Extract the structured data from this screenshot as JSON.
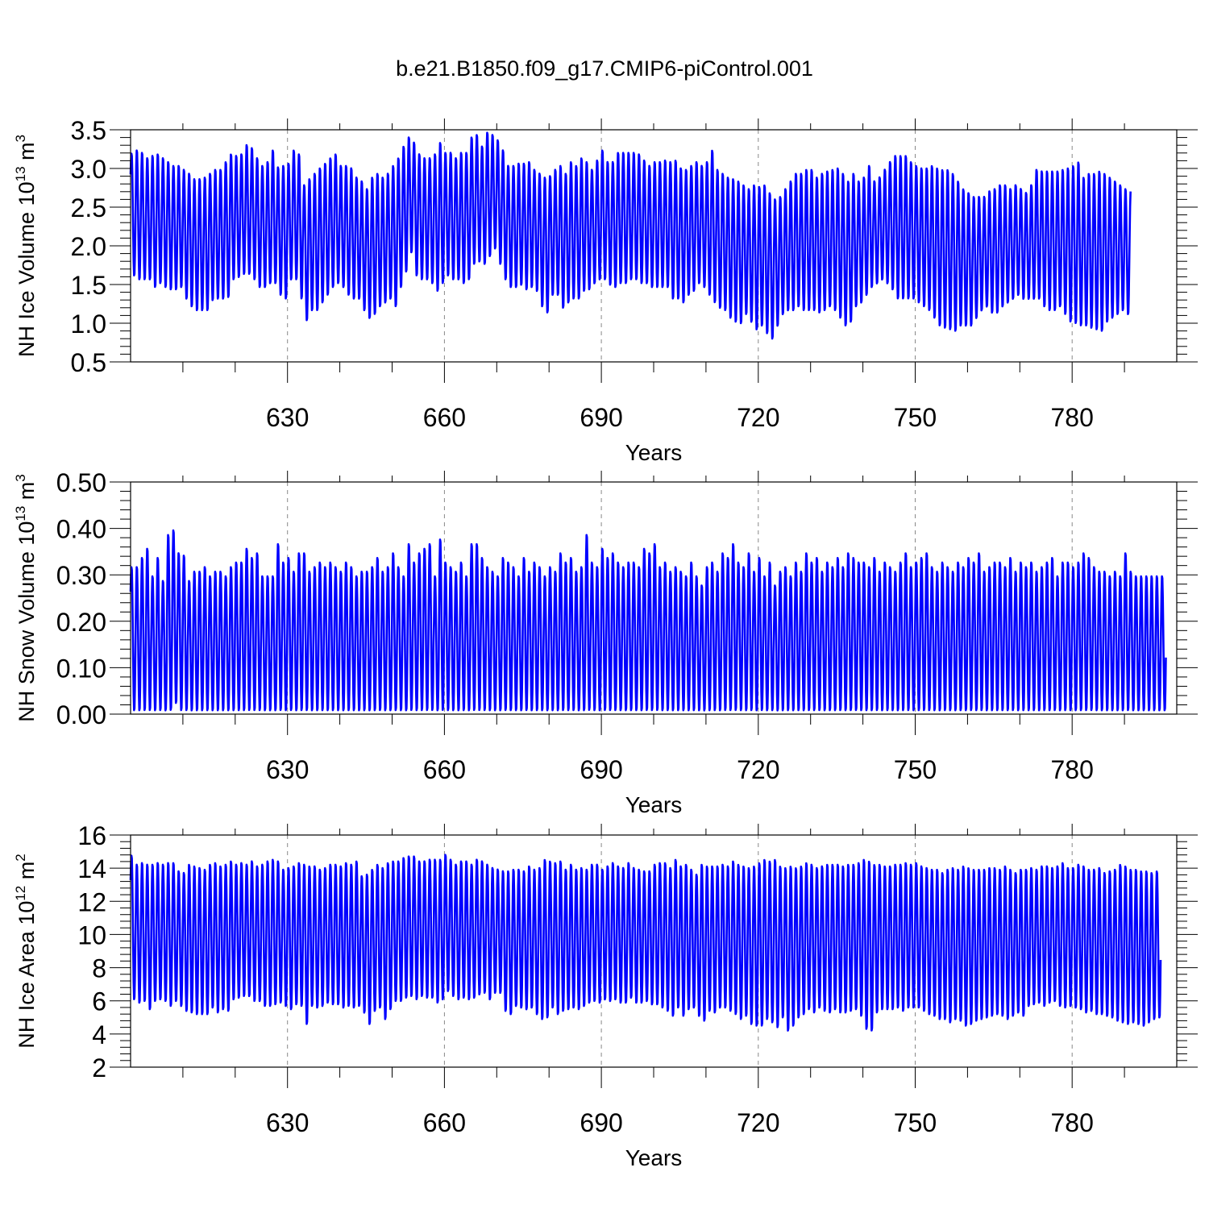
{
  "title": "b.e21.B1850.f09_g17.CMIP6-piControl.001",
  "colors": {
    "series": "#0000ff",
    "grid": "#888888",
    "axis": "#000000"
  },
  "chart_data": [
    {
      "type": "line",
      "xlabel": "Years",
      "ylabel_main": "NH Ice Volume 10",
      "ylabel_exp": "13",
      "ylabel_unit": " m",
      "ylabel_unit_exp": "3",
      "xlim": [
        600,
        800
      ],
      "ylim": [
        0.5,
        3.5
      ],
      "yticks": [
        "0.5",
        "1.0",
        "1.5",
        "2.0",
        "2.5",
        "3.0",
        "3.5"
      ],
      "xticks": [
        "630",
        "660",
        "690",
        "720",
        "750",
        "780"
      ],
      "start_year": 600,
      "end_year": 800,
      "series_name": "",
      "annual_max": [
        3.2,
        3.25,
        3.22,
        3.15,
        3.18,
        3.2,
        3.15,
        3.1,
        3.05,
        3.05,
        3.0,
        2.95,
        2.88,
        2.88,
        2.9,
        2.95,
        3.0,
        3.0,
        3.1,
        3.2,
        3.18,
        3.2,
        3.32,
        3.28,
        3.15,
        3.05,
        3.1,
        3.25,
        3.03,
        3.05,
        3.08,
        3.25,
        3.2,
        2.8,
        2.88,
        2.95,
        3.02,
        3.08,
        3.15,
        3.2,
        3.05,
        3.05,
        3.02,
        2.9,
        2.85,
        2.75,
        2.9,
        2.95,
        2.9,
        2.95,
        3.05,
        3.15,
        3.3,
        3.42,
        3.35,
        3.2,
        3.15,
        3.15,
        3.2,
        3.35,
        3.22,
        3.22,
        3.15,
        3.22,
        3.22,
        3.42,
        3.45,
        3.3,
        3.48,
        3.45,
        3.38,
        3.25,
        3.05,
        3.05,
        3.08,
        3.08,
        3.1,
        3.0,
        2.95,
        2.9,
        2.92,
        3.0,
        3.05,
        2.95,
        3.1,
        3.05,
        3.15,
        3.1,
        3.0,
        3.12,
        3.25,
        3.1,
        3.1,
        3.22,
        3.22,
        3.22,
        3.22,
        3.2,
        3.12,
        3.05,
        3.1,
        3.1,
        3.12,
        3.1,
        3.12,
        3.02,
        3.0,
        3.05,
        3.1,
        3.05,
        3.1,
        3.25,
        3.0,
        2.95,
        2.9,
        2.88,
        2.85,
        2.8,
        2.75,
        2.8,
        2.78,
        2.8,
        2.7,
        2.62,
        2.65,
        2.75,
        2.85,
        2.95,
        2.95,
        3.0,
        3.0,
        2.9,
        2.95,
        2.98,
        3.0,
        3.02,
        2.95,
        2.85,
        2.95,
        2.85,
        2.9,
        3.05,
        2.85,
        2.9,
        3.0,
        3.1,
        3.18,
        3.18,
        3.18,
        3.1,
        3.05,
        3.02,
        3.02,
        3.05,
        3.02,
        3.0,
        3.0,
        2.95,
        2.85,
        2.75,
        2.7,
        2.65,
        2.65,
        2.65,
        2.72,
        2.75,
        2.8,
        2.8,
        2.75,
        2.8,
        2.75,
        2.7,
        2.8,
        3.0,
        2.98,
        2.98,
        2.98,
        2.98,
        3.0,
        3.02,
        3.05,
        3.1,
        2.9,
        2.95,
        2.95,
        2.98,
        2.95,
        2.9,
        2.85,
        2.8,
        2.75,
        2.72,
        2.72,
        2.7,
        2.65,
        2.75,
        2.72
      ],
      "annual_min": [
        1.6,
        1.55,
        1.55,
        1.55,
        1.45,
        1.5,
        1.45,
        1.42,
        1.42,
        1.45,
        1.3,
        1.2,
        1.15,
        1.15,
        1.15,
        1.28,
        1.3,
        1.3,
        1.32,
        1.55,
        1.58,
        1.62,
        1.62,
        1.55,
        1.45,
        1.45,
        1.5,
        1.5,
        1.35,
        1.3,
        1.55,
        1.55,
        1.3,
        1.02,
        1.15,
        1.15,
        1.25,
        1.35,
        1.45,
        1.5,
        1.45,
        1.35,
        1.3,
        1.3,
        1.15,
        1.05,
        1.1,
        1.2,
        1.25,
        1.3,
        1.2,
        1.45,
        1.65,
        1.9,
        1.6,
        1.55,
        1.55,
        1.5,
        1.4,
        1.5,
        1.6,
        1.55,
        1.55,
        1.5,
        1.55,
        1.75,
        1.78,
        1.75,
        1.85,
        1.95,
        1.75,
        1.55,
        1.45,
        1.45,
        1.48,
        1.42,
        1.45,
        1.4,
        1.2,
        1.12,
        1.35,
        1.35,
        1.18,
        1.25,
        1.3,
        1.3,
        1.4,
        1.42,
        1.5,
        1.55,
        1.55,
        1.48,
        1.45,
        1.5,
        1.5,
        1.55,
        1.55,
        1.5,
        1.5,
        1.45,
        1.45,
        1.45,
        1.45,
        1.3,
        1.3,
        1.25,
        1.35,
        1.4,
        1.5,
        1.45,
        1.35,
        1.25,
        1.18,
        1.15,
        1.05,
        1.0,
        0.98,
        1.1,
        1.0,
        0.9,
        0.95,
        0.85,
        0.78,
        0.95,
        1.1,
        1.15,
        1.15,
        1.2,
        1.15,
        1.15,
        1.15,
        1.12,
        1.15,
        1.2,
        1.15,
        1.05,
        0.95,
        1.0,
        1.2,
        1.25,
        1.35,
        1.45,
        1.5,
        1.55,
        1.5,
        1.42,
        1.3,
        1.3,
        1.3,
        1.3,
        1.25,
        1.2,
        1.15,
        1.05,
        0.95,
        0.92,
        0.9,
        0.88,
        0.95,
        0.95,
        0.95,
        1.05,
        1.15,
        1.2,
        1.12,
        1.12,
        1.2,
        1.25,
        1.3,
        1.35,
        1.3,
        1.3,
        1.3,
        1.3,
        1.2,
        1.15,
        1.15,
        1.2,
        1.1,
        1.0,
        0.98,
        0.95,
        0.95,
        0.92,
        0.9,
        0.88,
        1.0,
        1.05,
        1.1,
        1.15,
        1.1
      ]
    },
    {
      "type": "line",
      "xlabel": "Years",
      "ylabel_main": "NH Snow Volume 10",
      "ylabel_exp": "13",
      "ylabel_unit": " m",
      "ylabel_unit_exp": "3",
      "xlim": [
        600,
        800
      ],
      "ylim": [
        0.0,
        0.5
      ],
      "yticks": [
        "0.00",
        "0.10",
        "0.20",
        "0.30",
        "0.40",
        "0.50"
      ],
      "xticks": [
        "630",
        "660",
        "690",
        "720",
        "750",
        "780"
      ],
      "start_year": 600,
      "end_year": 800,
      "series_name": "",
      "annual_max": [
        0.318,
        0.32,
        0.34,
        0.36,
        0.3,
        0.34,
        0.29,
        0.39,
        0.4,
        0.35,
        0.345,
        0.29,
        0.31,
        0.31,
        0.32,
        0.3,
        0.31,
        0.31,
        0.3,
        0.32,
        0.33,
        0.33,
        0.36,
        0.34,
        0.35,
        0.3,
        0.3,
        0.3,
        0.37,
        0.33,
        0.34,
        0.31,
        0.35,
        0.35,
        0.31,
        0.32,
        0.33,
        0.32,
        0.33,
        0.32,
        0.31,
        0.33,
        0.32,
        0.3,
        0.31,
        0.31,
        0.32,
        0.34,
        0.31,
        0.32,
        0.35,
        0.32,
        0.3,
        0.37,
        0.33,
        0.35,
        0.36,
        0.37,
        0.3,
        0.38,
        0.33,
        0.32,
        0.31,
        0.33,
        0.3,
        0.37,
        0.37,
        0.34,
        0.32,
        0.31,
        0.3,
        0.34,
        0.33,
        0.32,
        0.3,
        0.34,
        0.31,
        0.33,
        0.32,
        0.3,
        0.32,
        0.31,
        0.35,
        0.33,
        0.34,
        0.31,
        0.32,
        0.39,
        0.33,
        0.32,
        0.36,
        0.34,
        0.35,
        0.33,
        0.32,
        0.33,
        0.33,
        0.32,
        0.36,
        0.35,
        0.37,
        0.32,
        0.33,
        0.31,
        0.32,
        0.31,
        0.3,
        0.33,
        0.3,
        0.28,
        0.32,
        0.33,
        0.31,
        0.35,
        0.34,
        0.37,
        0.33,
        0.32,
        0.35,
        0.31,
        0.34,
        0.3,
        0.33,
        0.28,
        0.31,
        0.32,
        0.3,
        0.33,
        0.31,
        0.35,
        0.33,
        0.34,
        0.31,
        0.33,
        0.32,
        0.34,
        0.32,
        0.35,
        0.34,
        0.33,
        0.33,
        0.32,
        0.34,
        0.31,
        0.33,
        0.32,
        0.31,
        0.33,
        0.35,
        0.32,
        0.33,
        0.34,
        0.35,
        0.32,
        0.31,
        0.33,
        0.32,
        0.31,
        0.33,
        0.32,
        0.34,
        0.33,
        0.35,
        0.31,
        0.32,
        0.33,
        0.33,
        0.32,
        0.34,
        0.31,
        0.33,
        0.32,
        0.33,
        0.31,
        0.32,
        0.33,
        0.34,
        0.3,
        0.33,
        0.33,
        0.32,
        0.33,
        0.35,
        0.34,
        0.32,
        0.31,
        0.31,
        0.3,
        0.31,
        0.3,
        0.35,
        0.31,
        0.3,
        0.3,
        0.3,
        0.3,
        0.3,
        0.3
      ],
      "annual_min": [
        0.005,
        0.005,
        0.005,
        0.005,
        0.005,
        0.005,
        0.005,
        0.005,
        0.02,
        0.005,
        0.005,
        0.005,
        0.005,
        0.005,
        0.005,
        0.005,
        0.005,
        0.005,
        0.005,
        0.005,
        0.005,
        0.005,
        0.005,
        0.005,
        0.005,
        0.005,
        0.005,
        0.005,
        0.005,
        0.005,
        0.005,
        0.005,
        0.005,
        0.005,
        0.005,
        0.005,
        0.005,
        0.005,
        0.005,
        0.005,
        0.005,
        0.005,
        0.005,
        0.005,
        0.005,
        0.005,
        0.005,
        0.005,
        0.005,
        0.005,
        0.005,
        0.005,
        0.005,
        0.005,
        0.005,
        0.005,
        0.005,
        0.005,
        0.005,
        0.005,
        0.005,
        0.005,
        0.005,
        0.005,
        0.005,
        0.005,
        0.005,
        0.005,
        0.005,
        0.005,
        0.005,
        0.005,
        0.005,
        0.005,
        0.005,
        0.005,
        0.005,
        0.005,
        0.005,
        0.005,
        0.005,
        0.005,
        0.005,
        0.005,
        0.005,
        0.005,
        0.005,
        0.005,
        0.005,
        0.005,
        0.005,
        0.005,
        0.005,
        0.005,
        0.005,
        0.005,
        0.005,
        0.005,
        0.005,
        0.005,
        0.005,
        0.005,
        0.005,
        0.005,
        0.005,
        0.005,
        0.005,
        0.005,
        0.005,
        0.005,
        0.005,
        0.005,
        0.005,
        0.005,
        0.005,
        0.005,
        0.005,
        0.005,
        0.005,
        0.005,
        0.005,
        0.005,
        0.005,
        0.005,
        0.005,
        0.005,
        0.005,
        0.005,
        0.005,
        0.005,
        0.005,
        0.005,
        0.005,
        0.005,
        0.005,
        0.005,
        0.005,
        0.005,
        0.005,
        0.005,
        0.005,
        0.005,
        0.005,
        0.005,
        0.005,
        0.005,
        0.005,
        0.005,
        0.005,
        0.005,
        0.005,
        0.005,
        0.005,
        0.005,
        0.005,
        0.005,
        0.005,
        0.005,
        0.005,
        0.005,
        0.005,
        0.005,
        0.005,
        0.005,
        0.005,
        0.005,
        0.005,
        0.005,
        0.005,
        0.005,
        0.005,
        0.005,
        0.005,
        0.005,
        0.005,
        0.005,
        0.005,
        0.005,
        0.005,
        0.005,
        0.005,
        0.005,
        0.005,
        0.005,
        0.005,
        0.005,
        0.005,
        0.005,
        0.005,
        0.005,
        0.005,
        0.005,
        0.005,
        0.005,
        0.005,
        0.005,
        0.005,
        0.005,
        0.005,
        0.005,
        0.005,
        0.005
      ]
    },
    {
      "type": "line",
      "xlabel": "Years",
      "ylabel_main": "NH Ice Area 10",
      "ylabel_exp": "12",
      "ylabel_unit": " m",
      "ylabel_unit_exp": "2",
      "xlim": [
        600,
        800
      ],
      "ylim": [
        2,
        16
      ],
      "yticks": [
        "2",
        "4",
        "6",
        "8",
        "10",
        "12",
        "14",
        "16"
      ],
      "xticks": [
        "630",
        "660",
        "690",
        "720",
        "750",
        "780"
      ],
      "start_year": 600,
      "end_year": 800,
      "series_name": "",
      "annual_max": [
        14.8,
        14.3,
        14.4,
        14.3,
        14.3,
        14.4,
        14.3,
        14.4,
        14.4,
        13.9,
        13.8,
        14.3,
        14.2,
        14.1,
        14.0,
        14.3,
        14.4,
        14.2,
        14.3,
        14.5,
        14.3,
        14.4,
        14.3,
        14.5,
        14.2,
        14.3,
        14.5,
        14.6,
        14.5,
        14.0,
        14.1,
        14.2,
        14.4,
        14.3,
        14.2,
        14.2,
        14.0,
        14.1,
        14.3,
        14.3,
        14.2,
        14.4,
        14.3,
        14.5,
        13.6,
        13.7,
        14.0,
        14.3,
        14.1,
        14.4,
        14.5,
        14.5,
        14.7,
        14.8,
        14.8,
        14.5,
        14.5,
        14.6,
        14.6,
        14.6,
        14.9,
        14.6,
        14.3,
        14.5,
        14.5,
        14.3,
        14.6,
        14.5,
        14.3,
        14.1,
        14.0,
        13.9,
        13.9,
        14.0,
        14.0,
        13.9,
        14.2,
        14.0,
        14.1,
        14.6,
        14.5,
        14.4,
        14.5,
        14.0,
        14.3,
        14.0,
        14.1,
        14.0,
        14.3,
        14.3,
        14.0,
        14.2,
        14.4,
        14.2,
        14.1,
        14.4,
        14.1,
        14.0,
        13.9,
        13.9,
        14.3,
        14.4,
        14.4,
        14.1,
        14.6,
        14.2,
        14.3,
        14.0,
        13.7,
        14.3,
        14.2,
        14.2,
        14.2,
        14.3,
        14.2,
        14.5,
        14.3,
        14.2,
        14.1,
        14.2,
        14.4,
        14.6,
        14.5,
        14.6,
        14.2,
        14.1,
        14.2,
        14.1,
        14.2,
        14.4,
        14.3,
        14.1,
        14.2,
        14.3,
        14.3,
        14.3,
        14.2,
        14.3,
        14.3,
        14.4,
        14.6,
        14.5,
        14.3,
        14.3,
        14.2,
        14.2,
        14.3,
        14.3,
        14.4,
        14.3,
        14.4,
        14.2,
        14.1,
        14.0,
        14.0,
        13.8,
        14.0,
        14.1,
        14.0,
        14.2,
        14.1,
        14.0,
        14.0,
        14.0,
        14.1,
        14.1,
        14.0,
        14.2,
        14.0,
        13.8,
        14.0,
        14.0,
        14.1,
        14.0,
        14.2,
        14.2,
        14.1,
        14.2,
        14.4,
        14.1,
        14.1,
        14.3,
        14.2,
        14.0,
        14.0,
        14.1,
        13.8,
        13.9,
        14.0,
        14.3,
        14.2,
        14.0,
        14.0,
        13.9,
        13.9,
        13.8,
        13.9
      ],
      "annual_min": [
        6.0,
        5.8,
        5.9,
        5.4,
        5.9,
        6.0,
        5.9,
        5.6,
        5.9,
        5.6,
        5.3,
        5.2,
        5.1,
        5.1,
        5.1,
        5.5,
        5.2,
        5.4,
        5.3,
        6.0,
        6.1,
        6.2,
        6.2,
        5.9,
        5.9,
        5.6,
        5.6,
        5.7,
        5.8,
        5.6,
        5.4,
        5.7,
        5.6,
        4.5,
        5.6,
        5.5,
        5.6,
        5.8,
        5.7,
        5.7,
        5.5,
        5.6,
        5.5,
        5.6,
        5.2,
        4.5,
        5.3,
        5.5,
        4.8,
        5.4,
        5.9,
        5.9,
        6.1,
        6.2,
        6.0,
        6.2,
        6.1,
        6.1,
        5.8,
        6.0,
        6.5,
        6.2,
        6.0,
        6.1,
        6.0,
        6.1,
        6.3,
        6.4,
        6.0,
        6.4,
        6.4,
        5.3,
        5.1,
        5.6,
        5.5,
        5.4,
        5.5,
        5.1,
        4.8,
        4.9,
        5.5,
        5.1,
        5.3,
        5.4,
        5.5,
        5.4,
        5.6,
        5.8,
        5.9,
        5.8,
        6.0,
        5.9,
        6.0,
        5.8,
        5.8,
        6.1,
        5.8,
        5.8,
        5.9,
        5.7,
        5.7,
        5.5,
        5.3,
        5.0,
        5.5,
        5.0,
        5.4,
        5.5,
        5.0,
        4.7,
        5.3,
        5.2,
        5.5,
        5.5,
        5.3,
        5.1,
        4.8,
        5.0,
        4.5,
        4.4,
        4.4,
        4.8,
        4.6,
        4.3,
        4.9,
        4.1,
        4.4,
        4.9,
        5.1,
        5.4,
        5.2,
        5.5,
        5.3,
        5.2,
        5.4,
        5.2,
        5.2,
        5.3,
        5.4,
        5.0,
        4.2,
        4.1,
        5.2,
        5.4,
        5.4,
        5.4,
        5.5,
        5.3,
        5.5,
        5.5,
        5.5,
        5.3,
        5.1,
        5.0,
        4.8,
        4.8,
        4.6,
        4.8,
        4.7,
        4.4,
        4.5,
        4.7,
        4.8,
        4.9,
        5.0,
        5.1,
        5.0,
        4.8,
        5.0,
        5.2,
        5.0,
        5.6,
        5.7,
        5.8,
        5.6,
        5.8,
        5.9,
        5.6,
        5.5,
        5.6,
        5.5,
        5.4,
        5.2,
        5.3,
        5.1,
        5.1,
        5.0,
        4.9,
        4.7,
        4.6,
        4.5,
        4.6,
        4.5,
        4.4,
        4.6,
        4.8,
        4.9
      ]
    }
  ]
}
